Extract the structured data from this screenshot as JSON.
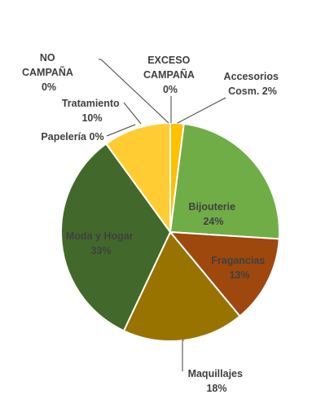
{
  "chart_data": {
    "type": "pie",
    "title": "",
    "slices": [
      {
        "label": "Accesorios Cosm.",
        "percent_text": "2%",
        "value": 2,
        "color": "#FFC000"
      },
      {
        "label": "Bijouterie",
        "percent_text": "24%",
        "value": 24,
        "color": "#70AD47"
      },
      {
        "label": "Fragancias",
        "percent_text": "13%",
        "value": 13,
        "color": "#9E480E"
      },
      {
        "label": "Maquillajes",
        "percent_text": "18%",
        "value": 18,
        "color": "#997300"
      },
      {
        "label": "Moda y Hogar",
        "percent_text": "33%",
        "value": 33,
        "color": "#43682B"
      },
      {
        "label": "Papelería",
        "percent_text": "0%",
        "value": 0,
        "color": "#264478"
      },
      {
        "label": "Tratamiento",
        "percent_text": "10%",
        "value": 10,
        "color": "#FFCD33"
      },
      {
        "label": "NO CAMPAÑA",
        "percent_text": "0%",
        "value": 0,
        "color": "#5B9BD5"
      },
      {
        "label": "EXCESO CAMPAÑA",
        "percent_text": "0%",
        "value": 0,
        "color": "#ED7D31"
      }
    ],
    "legend": "none",
    "data_labels": "category and percentage"
  }
}
